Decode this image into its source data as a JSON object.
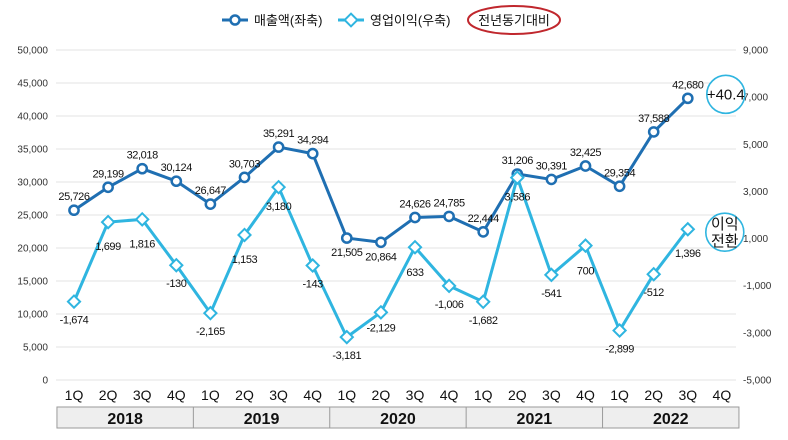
{
  "chart_data": {
    "type": "line",
    "title": "",
    "legend": {
      "position": "top-center",
      "entries": [
        "매출액(좌축)",
        "영업이익(우축)",
        "전년동기대비"
      ]
    },
    "quarters": [
      "1Q",
      "2Q",
      "3Q",
      "4Q",
      "1Q",
      "2Q",
      "3Q",
      "4Q",
      "1Q",
      "2Q",
      "3Q",
      "4Q",
      "1Q",
      "2Q",
      "3Q",
      "4Q",
      "1Q",
      "2Q",
      "3Q",
      "4Q"
    ],
    "years": [
      "2018",
      "2019",
      "2020",
      "2021",
      "2022"
    ],
    "left_axis": {
      "min": 0,
      "max": 50000,
      "step": 5000,
      "ticks": [
        "0",
        "5,000",
        "10,000",
        "15,000",
        "20,000",
        "25,000",
        "30,000",
        "35,000",
        "40,000",
        "45,000",
        "50,000"
      ]
    },
    "right_axis": {
      "min": -5000,
      "max": 9000,
      "step": 2000,
      "ticks": [
        "-5,000",
        "-3,000",
        "-1,000",
        "1,000",
        "3,000",
        "5,000",
        "7,000",
        "9,000"
      ]
    },
    "series": [
      {
        "name": "매출액(좌축)",
        "axis": "left",
        "color": "#1f6fb2",
        "values": [
          25726,
          29199,
          32018,
          30124,
          26647,
          30703,
          35291,
          34294,
          21505,
          20864,
          24626,
          24785,
          22444,
          31206,
          30391,
          32425,
          29354,
          37588,
          42680,
          null
        ],
        "labels": [
          "25,726",
          "29,199",
          "32,018",
          "30,124",
          "26,647",
          "30,703",
          "35,291",
          "34,294",
          "21,505",
          "20,864",
          "24,626",
          "24,785",
          "22,444",
          "31,206",
          "30,391",
          "32,425",
          "29,354",
          "37,588",
          "42,680",
          ""
        ]
      },
      {
        "name": "영업이익(우축)",
        "axis": "right",
        "color": "#2fb5e0",
        "values": [
          -1674,
          1699,
          1816,
          -130,
          -2165,
          1153,
          3180,
          -143,
          -3181,
          -2129,
          633,
          -1006,
          -1682,
          3586,
          -541,
          700,
          -2899,
          -512,
          1396,
          null
        ],
        "labels": [
          "-1,674",
          "1,699",
          "1,816",
          "-130",
          "-2,165",
          "1,153",
          "3,180",
          "-143",
          "-3,181",
          "-2,129",
          "633",
          "-1,006",
          "-1,682",
          "3,586",
          "-541",
          "700",
          "-2,899",
          "-512",
          "1,396",
          ""
        ]
      }
    ],
    "annotations": [
      {
        "text": "+40.4",
        "target": "매출액 2022 3Q"
      },
      {
        "text_line1": "이익",
        "text_line2": "전환",
        "target": "영업이익 2022 3Q"
      }
    ]
  }
}
